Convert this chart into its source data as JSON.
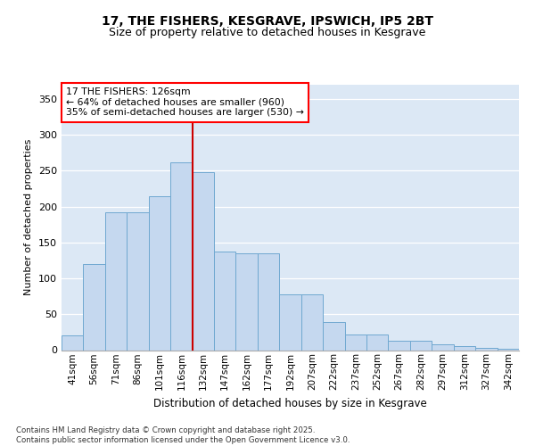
{
  "title1": "17, THE FISHERS, KESGRAVE, IPSWICH, IP5 2BT",
  "title2": "Size of property relative to detached houses in Kesgrave",
  "xlabel": "Distribution of detached houses by size in Kesgrave",
  "ylabel": "Number of detached properties",
  "categories": [
    "41sqm",
    "56sqm",
    "71sqm",
    "86sqm",
    "101sqm",
    "116sqm",
    "132sqm",
    "147sqm",
    "162sqm",
    "177sqm",
    "192sqm",
    "207sqm",
    "222sqm",
    "237sqm",
    "252sqm",
    "267sqm",
    "282sqm",
    "297sqm",
    "312sqm",
    "327sqm",
    "342sqm"
  ],
  "bar_heights": [
    20,
    120,
    192,
    192,
    214,
    262,
    248,
    137,
    135,
    135,
    78,
    78,
    39,
    22,
    22,
    13,
    13,
    8,
    5,
    3,
    2
  ],
  "bar_color": "#c5d8ef",
  "bar_edge_color": "#6fa8d0",
  "red_line_x": 6.5,
  "annotation_text": "17 THE FISHERS: 126sqm\n← 64% of detached houses are smaller (960)\n35% of semi-detached houses are larger (530) →",
  "footer": "Contains HM Land Registry data © Crown copyright and database right 2025.\nContains public sector information licensed under the Open Government Licence v3.0.",
  "ylim": [
    0,
    370
  ],
  "yticks": [
    0,
    50,
    100,
    150,
    200,
    250,
    300,
    350
  ],
  "bg_color": "#dce8f5",
  "grid_color": "#ffffff",
  "title_fontsize": 10,
  "subtitle_fontsize": 9
}
